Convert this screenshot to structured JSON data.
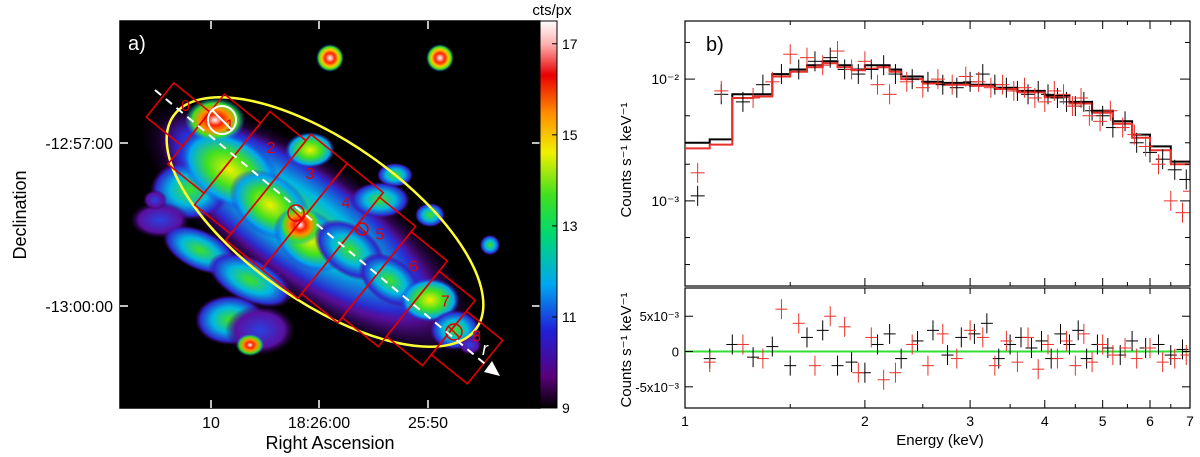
{
  "panel_a": {
    "label": "a)",
    "colorbar_title": "cts/px",
    "colorbar_ticks": [
      "17",
      "15",
      "13",
      "11",
      "9"
    ],
    "x_axis_title": "Right Ascension",
    "x_ticks": [
      "10",
      "18:26:00",
      "25:50"
    ],
    "y_axis_title": "Declination",
    "y_ticks": [
      "-12:57:00",
      "-13:00:00"
    ],
    "region_labels": [
      "0",
      "1",
      "2",
      "3",
      "4",
      "5",
      "6",
      "7",
      "8"
    ],
    "r_label": "r",
    "colors": {
      "background": "#000000",
      "ellipse": "#ffff33",
      "regions": "#e00000",
      "arrow": "#ffffff"
    }
  },
  "chart_data": [
    {
      "type": "line",
      "title": "",
      "panel_label": "b)",
      "xlabel": "Energy (keV)",
      "ylabel": "Counts s⁻¹ keV⁻¹",
      "xscale": "log",
      "yscale": "log",
      "xlim": [
        1,
        7
      ],
      "ylim": [
        0.0002,
        0.03
      ],
      "x_tick_labels": [
        "1",
        "2",
        "3",
        "4",
        "5",
        "6",
        "7"
      ],
      "y_tick_labels": [
        "10⁻³",
        "10⁻²"
      ],
      "series": [
        {
          "name": "data (black)",
          "color": "#000000",
          "x": [
            1.05,
            1.15,
            1.25,
            1.35,
            1.45,
            1.55,
            1.65,
            1.75,
            1.85,
            1.95,
            2.05,
            2.15,
            2.25,
            2.4,
            2.55,
            2.7,
            2.85,
            3.0,
            3.15,
            3.3,
            3.45,
            3.6,
            3.75,
            3.9,
            4.05,
            4.2,
            4.35,
            4.5,
            4.65,
            4.8,
            5.0,
            5.2,
            5.45,
            5.7,
            6.0,
            6.3,
            6.6,
            6.9
          ],
          "values": [
            0.0011,
            0.0075,
            0.0065,
            0.009,
            0.011,
            0.012,
            0.014,
            0.015,
            0.012,
            0.011,
            0.012,
            0.013,
            0.011,
            0.01,
            0.0095,
            0.009,
            0.0085,
            0.0095,
            0.011,
            0.009,
            0.0085,
            0.008,
            0.0075,
            0.008,
            0.0075,
            0.007,
            0.0065,
            0.006,
            0.0065,
            0.0055,
            0.005,
            0.004,
            0.0045,
            0.003,
            0.0025,
            0.0022,
            0.0018,
            0.0015
          ]
        },
        {
          "name": "data (red)",
          "color": "#e8312a",
          "x": [
            1.05,
            1.15,
            1.3,
            1.4,
            1.5,
            1.6,
            1.7,
            1.8,
            1.9,
            2.0,
            2.1,
            2.2,
            2.35,
            2.5,
            2.65,
            2.8,
            2.95,
            3.1,
            3.25,
            3.4,
            3.55,
            3.7,
            3.85,
            4.0,
            4.15,
            4.3,
            4.45,
            4.6,
            4.75,
            4.95,
            5.15,
            5.4,
            5.65,
            5.9,
            6.2,
            6.5,
            6.8,
            7.0
          ],
          "values": [
            0.0017,
            0.008,
            0.007,
            0.0095,
            0.016,
            0.015,
            0.013,
            0.017,
            0.012,
            0.014,
            0.009,
            0.0075,
            0.0095,
            0.0085,
            0.01,
            0.009,
            0.0105,
            0.0095,
            0.0085,
            0.009,
            0.008,
            0.0085,
            0.007,
            0.0065,
            0.008,
            0.0075,
            0.006,
            0.007,
            0.005,
            0.0045,
            0.0055,
            0.004,
            0.0035,
            0.0028,
            0.002,
            0.001,
            0.0008,
            0.0012
          ]
        },
        {
          "name": "model (black)",
          "color": "#000000",
          "x": [
            1.0,
            1.1,
            1.2,
            1.3,
            1.4,
            1.5,
            1.6,
            1.7,
            1.8,
            1.9,
            2.0,
            2.1,
            2.2,
            2.3,
            2.5,
            2.7,
            3.0,
            3.3,
            3.6,
            4.0,
            4.4,
            4.8,
            5.2,
            5.6,
            6.0,
            6.5,
            7.0
          ],
          "values": [
            0.003,
            0.0032,
            0.0075,
            0.0075,
            0.011,
            0.012,
            0.013,
            0.014,
            0.013,
            0.012,
            0.013,
            0.013,
            0.012,
            0.0105,
            0.0095,
            0.0093,
            0.009,
            0.0085,
            0.008,
            0.0073,
            0.0065,
            0.0055,
            0.0045,
            0.0035,
            0.0028,
            0.0021,
            0.0016
          ]
        },
        {
          "name": "model (red)",
          "color": "#e8312a",
          "x": [
            1.0,
            1.1,
            1.2,
            1.3,
            1.4,
            1.5,
            1.6,
            1.7,
            1.8,
            1.9,
            2.0,
            2.1,
            2.2,
            2.3,
            2.5,
            2.7,
            3.0,
            3.3,
            3.6,
            4.0,
            4.4,
            4.8,
            5.2,
            5.6,
            6.0,
            6.5,
            7.0
          ],
          "values": [
            0.0027,
            0.0029,
            0.007,
            0.0072,
            0.0105,
            0.0115,
            0.0125,
            0.0135,
            0.0125,
            0.0118,
            0.0122,
            0.0125,
            0.0115,
            0.01,
            0.0092,
            0.009,
            0.0088,
            0.0083,
            0.0078,
            0.0071,
            0.0063,
            0.0053,
            0.0043,
            0.0033,
            0.0026,
            0.002,
            0.0015
          ]
        }
      ]
    },
    {
      "type": "scatter",
      "title": "",
      "xlabel": "Energy (keV)",
      "ylabel": "Counts s⁻¹ keV⁻¹",
      "xscale": "log",
      "xlim": [
        1,
        7
      ],
      "ylim": [
        -0.008,
        0.009
      ],
      "x_tick_labels": [
        "1",
        "2",
        "3",
        "4",
        "5",
        "6",
        "7"
      ],
      "y_tick_labels": [
        "5x10⁻³",
        "0",
        "-5x10⁻³"
      ],
      "reference_line": {
        "y": 0,
        "color": "#33dd33"
      },
      "series": [
        {
          "name": "residuals (black)",
          "color": "#000000",
          "x": [
            1.1,
            1.2,
            1.3,
            1.4,
            1.5,
            1.6,
            1.7,
            1.8,
            1.9,
            2.0,
            2.1,
            2.2,
            2.3,
            2.45,
            2.6,
            2.75,
            2.9,
            3.05,
            3.2,
            3.35,
            3.5,
            3.65,
            3.8,
            3.95,
            4.1,
            4.25,
            4.4,
            4.55,
            4.7,
            4.9,
            5.1,
            5.35,
            5.6,
            5.9,
            6.2,
            6.5,
            6.8
          ],
          "values": [
            -0.001,
            0.001,
            -0.0008,
            0.0007,
            -0.002,
            0.002,
            0.003,
            -0.002,
            -0.0015,
            -0.003,
            0.001,
            0.0025,
            -0.001,
            0.0015,
            0.003,
            -0.0005,
            0.002,
            0.0025,
            0.004,
            -0.001,
            0.001,
            0.002,
            0.0005,
            0.0015,
            -0.001,
            0.0025,
            0.001,
            0.003,
            -0.001,
            0.001,
            0.0005,
            -0.0005,
            0.0015,
            0.0005,
            0.001,
            -0.0005,
            0.0003
          ]
        },
        {
          "name": "residuals (red)",
          "color": "#e8312a",
          "x": [
            1.1,
            1.25,
            1.35,
            1.45,
            1.55,
            1.65,
            1.75,
            1.85,
            1.95,
            2.05,
            2.15,
            2.25,
            2.4,
            2.55,
            2.7,
            2.85,
            3.0,
            3.15,
            3.3,
            3.45,
            3.6,
            3.75,
            3.9,
            4.05,
            4.2,
            4.35,
            4.5,
            4.65,
            4.8,
            5.0,
            5.2,
            5.45,
            5.7,
            6.0,
            6.3,
            6.6,
            6.9
          ],
          "values": [
            -0.0015,
            0.001,
            -0.001,
            0.006,
            0.004,
            -0.002,
            0.005,
            0.0035,
            -0.003,
            0.002,
            -0.004,
            -0.003,
            0.001,
            -0.002,
            0.0025,
            -0.001,
            0.003,
            0.002,
            -0.002,
            0.0015,
            -0.0015,
            0.002,
            -0.0025,
            0.001,
            -0.001,
            0.0015,
            -0.002,
            0.0025,
            -0.0015,
            0.001,
            -0.0005,
            0.0005,
            -0.001,
            0.0005,
            -0.0015,
            -0.001,
            -0.0005
          ]
        }
      ]
    }
  ]
}
